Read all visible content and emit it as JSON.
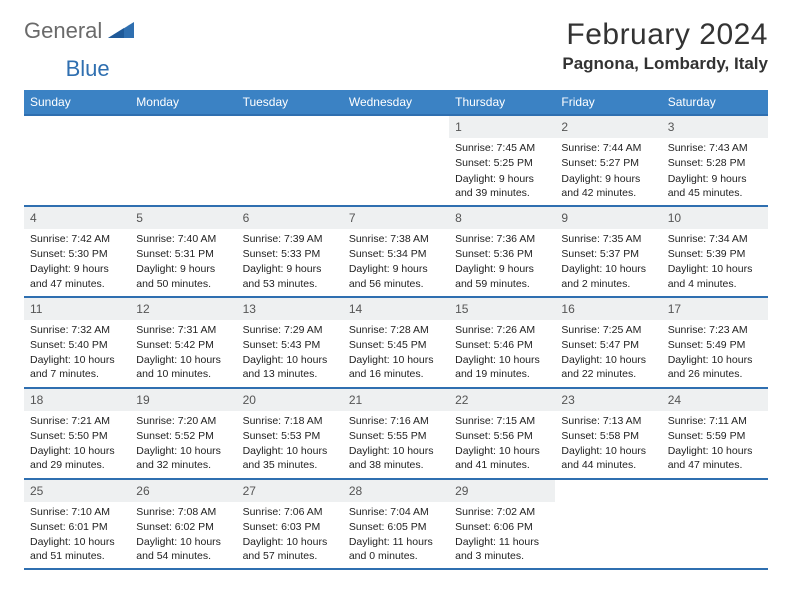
{
  "brand": {
    "part1": "General",
    "part2": "Blue"
  },
  "title": "February 2024",
  "location": "Pagnona, Lombardy, Italy",
  "colors": {
    "header_bg": "#3b82c4",
    "rule": "#2f6fb0",
    "daynum_bg": "#eef0f1",
    "logo_gray": "#6a6a6a",
    "logo_blue": "#2f6fb0"
  },
  "weekdays": [
    "Sunday",
    "Monday",
    "Tuesday",
    "Wednesday",
    "Thursday",
    "Friday",
    "Saturday"
  ],
  "first_weekday_index": 4,
  "days": [
    {
      "n": 1,
      "sunrise": "7:45 AM",
      "sunset": "5:25 PM",
      "daylight": "9 hours and 39 minutes."
    },
    {
      "n": 2,
      "sunrise": "7:44 AM",
      "sunset": "5:27 PM",
      "daylight": "9 hours and 42 minutes."
    },
    {
      "n": 3,
      "sunrise": "7:43 AM",
      "sunset": "5:28 PM",
      "daylight": "9 hours and 45 minutes."
    },
    {
      "n": 4,
      "sunrise": "7:42 AM",
      "sunset": "5:30 PM",
      "daylight": "9 hours and 47 minutes."
    },
    {
      "n": 5,
      "sunrise": "7:40 AM",
      "sunset": "5:31 PM",
      "daylight": "9 hours and 50 minutes."
    },
    {
      "n": 6,
      "sunrise": "7:39 AM",
      "sunset": "5:33 PM",
      "daylight": "9 hours and 53 minutes."
    },
    {
      "n": 7,
      "sunrise": "7:38 AM",
      "sunset": "5:34 PM",
      "daylight": "9 hours and 56 minutes."
    },
    {
      "n": 8,
      "sunrise": "7:36 AM",
      "sunset": "5:36 PM",
      "daylight": "9 hours and 59 minutes."
    },
    {
      "n": 9,
      "sunrise": "7:35 AM",
      "sunset": "5:37 PM",
      "daylight": "10 hours and 2 minutes."
    },
    {
      "n": 10,
      "sunrise": "7:34 AM",
      "sunset": "5:39 PM",
      "daylight": "10 hours and 4 minutes."
    },
    {
      "n": 11,
      "sunrise": "7:32 AM",
      "sunset": "5:40 PM",
      "daylight": "10 hours and 7 minutes."
    },
    {
      "n": 12,
      "sunrise": "7:31 AM",
      "sunset": "5:42 PM",
      "daylight": "10 hours and 10 minutes."
    },
    {
      "n": 13,
      "sunrise": "7:29 AM",
      "sunset": "5:43 PM",
      "daylight": "10 hours and 13 minutes."
    },
    {
      "n": 14,
      "sunrise": "7:28 AM",
      "sunset": "5:45 PM",
      "daylight": "10 hours and 16 minutes."
    },
    {
      "n": 15,
      "sunrise": "7:26 AM",
      "sunset": "5:46 PM",
      "daylight": "10 hours and 19 minutes."
    },
    {
      "n": 16,
      "sunrise": "7:25 AM",
      "sunset": "5:47 PM",
      "daylight": "10 hours and 22 minutes."
    },
    {
      "n": 17,
      "sunrise": "7:23 AM",
      "sunset": "5:49 PM",
      "daylight": "10 hours and 26 minutes."
    },
    {
      "n": 18,
      "sunrise": "7:21 AM",
      "sunset": "5:50 PM",
      "daylight": "10 hours and 29 minutes."
    },
    {
      "n": 19,
      "sunrise": "7:20 AM",
      "sunset": "5:52 PM",
      "daylight": "10 hours and 32 minutes."
    },
    {
      "n": 20,
      "sunrise": "7:18 AM",
      "sunset": "5:53 PM",
      "daylight": "10 hours and 35 minutes."
    },
    {
      "n": 21,
      "sunrise": "7:16 AM",
      "sunset": "5:55 PM",
      "daylight": "10 hours and 38 minutes."
    },
    {
      "n": 22,
      "sunrise": "7:15 AM",
      "sunset": "5:56 PM",
      "daylight": "10 hours and 41 minutes."
    },
    {
      "n": 23,
      "sunrise": "7:13 AM",
      "sunset": "5:58 PM",
      "daylight": "10 hours and 44 minutes."
    },
    {
      "n": 24,
      "sunrise": "7:11 AM",
      "sunset": "5:59 PM",
      "daylight": "10 hours and 47 minutes."
    },
    {
      "n": 25,
      "sunrise": "7:10 AM",
      "sunset": "6:01 PM",
      "daylight": "10 hours and 51 minutes."
    },
    {
      "n": 26,
      "sunrise": "7:08 AM",
      "sunset": "6:02 PM",
      "daylight": "10 hours and 54 minutes."
    },
    {
      "n": 27,
      "sunrise": "7:06 AM",
      "sunset": "6:03 PM",
      "daylight": "10 hours and 57 minutes."
    },
    {
      "n": 28,
      "sunrise": "7:04 AM",
      "sunset": "6:05 PM",
      "daylight": "11 hours and 0 minutes."
    },
    {
      "n": 29,
      "sunrise": "7:02 AM",
      "sunset": "6:06 PM",
      "daylight": "11 hours and 3 minutes."
    }
  ],
  "labels": {
    "sunrise_prefix": "Sunrise: ",
    "sunset_prefix": "Sunset: ",
    "daylight_prefix": "Daylight: "
  }
}
